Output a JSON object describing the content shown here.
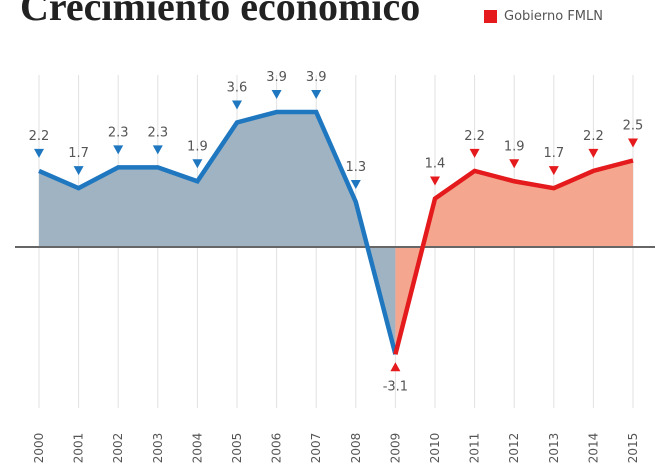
{
  "chart_data": {
    "type": "area",
    "title": "Crecimiento económico",
    "xlabel": "",
    "ylabel": "",
    "ylim": [
      -3.1,
      3.9
    ],
    "categories": [
      "2000",
      "2001",
      "2002",
      "2003",
      "2004",
      "2005",
      "2006",
      "2007",
      "2008",
      "2009",
      "2010",
      "2011",
      "2012",
      "2013",
      "2014",
      "2015"
    ],
    "values": [
      2.2,
      1.7,
      2.3,
      2.3,
      1.9,
      3.6,
      3.9,
      3.9,
      1.3,
      -3.1,
      1.4,
      2.2,
      1.9,
      1.7,
      2.2,
      2.5
    ],
    "value_labels": [
      "2.2",
      "1.7",
      "2.3",
      "2.3",
      "1.9",
      "3.6",
      "3.9",
      "3.9",
      "1.3",
      "-3.1",
      "1.4",
      "2.2",
      "1.9",
      "1.7",
      "2.2",
      "2.5"
    ],
    "legend": [
      {
        "name": "Gobierno FMLN",
        "color": "#e41a1c"
      }
    ],
    "segments": [
      {
        "from": 0,
        "to": 9,
        "line_color": "#1f77c0",
        "fill_color": "#9fb3c3"
      },
      {
        "from": 9,
        "to": 15,
        "line_color": "#e41a1c",
        "fill_color": "#f4a78e"
      }
    ],
    "zero_line_color": "#666666",
    "grid": "vertical",
    "legend_position": "top-right"
  }
}
